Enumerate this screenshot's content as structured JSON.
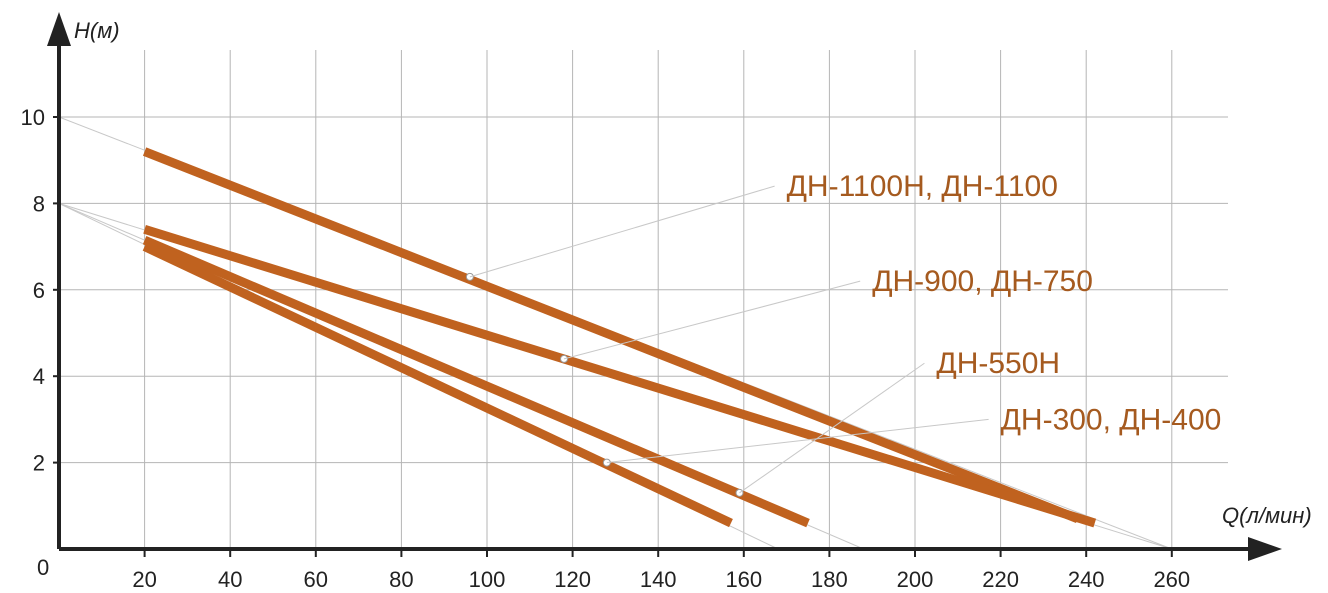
{
  "chart_data": {
    "type": "line",
    "title": "",
    "xlabel": "Q(л/мин)",
    "ylabel": "H(м)",
    "origin_label": "0",
    "xlim": [
      0,
      260
    ],
    "ylim": [
      0,
      11
    ],
    "x_ticks": [
      "20",
      "40",
      "60",
      "80",
      "100",
      "120",
      "140",
      "160",
      "180",
      "200",
      "220",
      "240",
      "260"
    ],
    "y_ticks": [
      "2",
      "4",
      "6",
      "8",
      "10"
    ],
    "grid": true,
    "series_color": "#c0621f",
    "series": [
      {
        "name": "ДН-1100Н, ДН-1100",
        "x": [
          20,
          238
        ],
        "y": [
          9.2,
          0.7
        ],
        "marker": [
          96,
          6.3
        ],
        "label_at": [
          170,
          8.4
        ]
      },
      {
        "name": "ДН-900, ДН-750",
        "x": [
          20,
          242
        ],
        "y": [
          7.4,
          0.6
        ],
        "marker": [
          118,
          4.4
        ],
        "label_at": [
          190,
          6.2
        ]
      },
      {
        "name": "ДН-550Н",
        "x": [
          20,
          175
        ],
        "y": [
          7.15,
          0.6
        ],
        "marker": [
          159,
          1.3
        ],
        "label_at": [
          205,
          4.3
        ]
      },
      {
        "name": "ДН-300, ДН-400",
        "x": [
          20,
          157
        ],
        "y": [
          7.0,
          0.6
        ],
        "marker": [
          128,
          2.0
        ],
        "label_at": [
          220,
          3.0
        ]
      }
    ],
    "reference_lines": [
      {
        "from": [
          0,
          10
        ],
        "to": [
          260,
          0
        ]
      },
      {
        "from": [
          0,
          8
        ],
        "to": [
          260,
          0
        ]
      },
      {
        "from": [
          0,
          8
        ],
        "to": [
          188,
          0
        ]
      },
      {
        "from": [
          0,
          8
        ],
        "to": [
          168,
          0
        ]
      }
    ]
  }
}
